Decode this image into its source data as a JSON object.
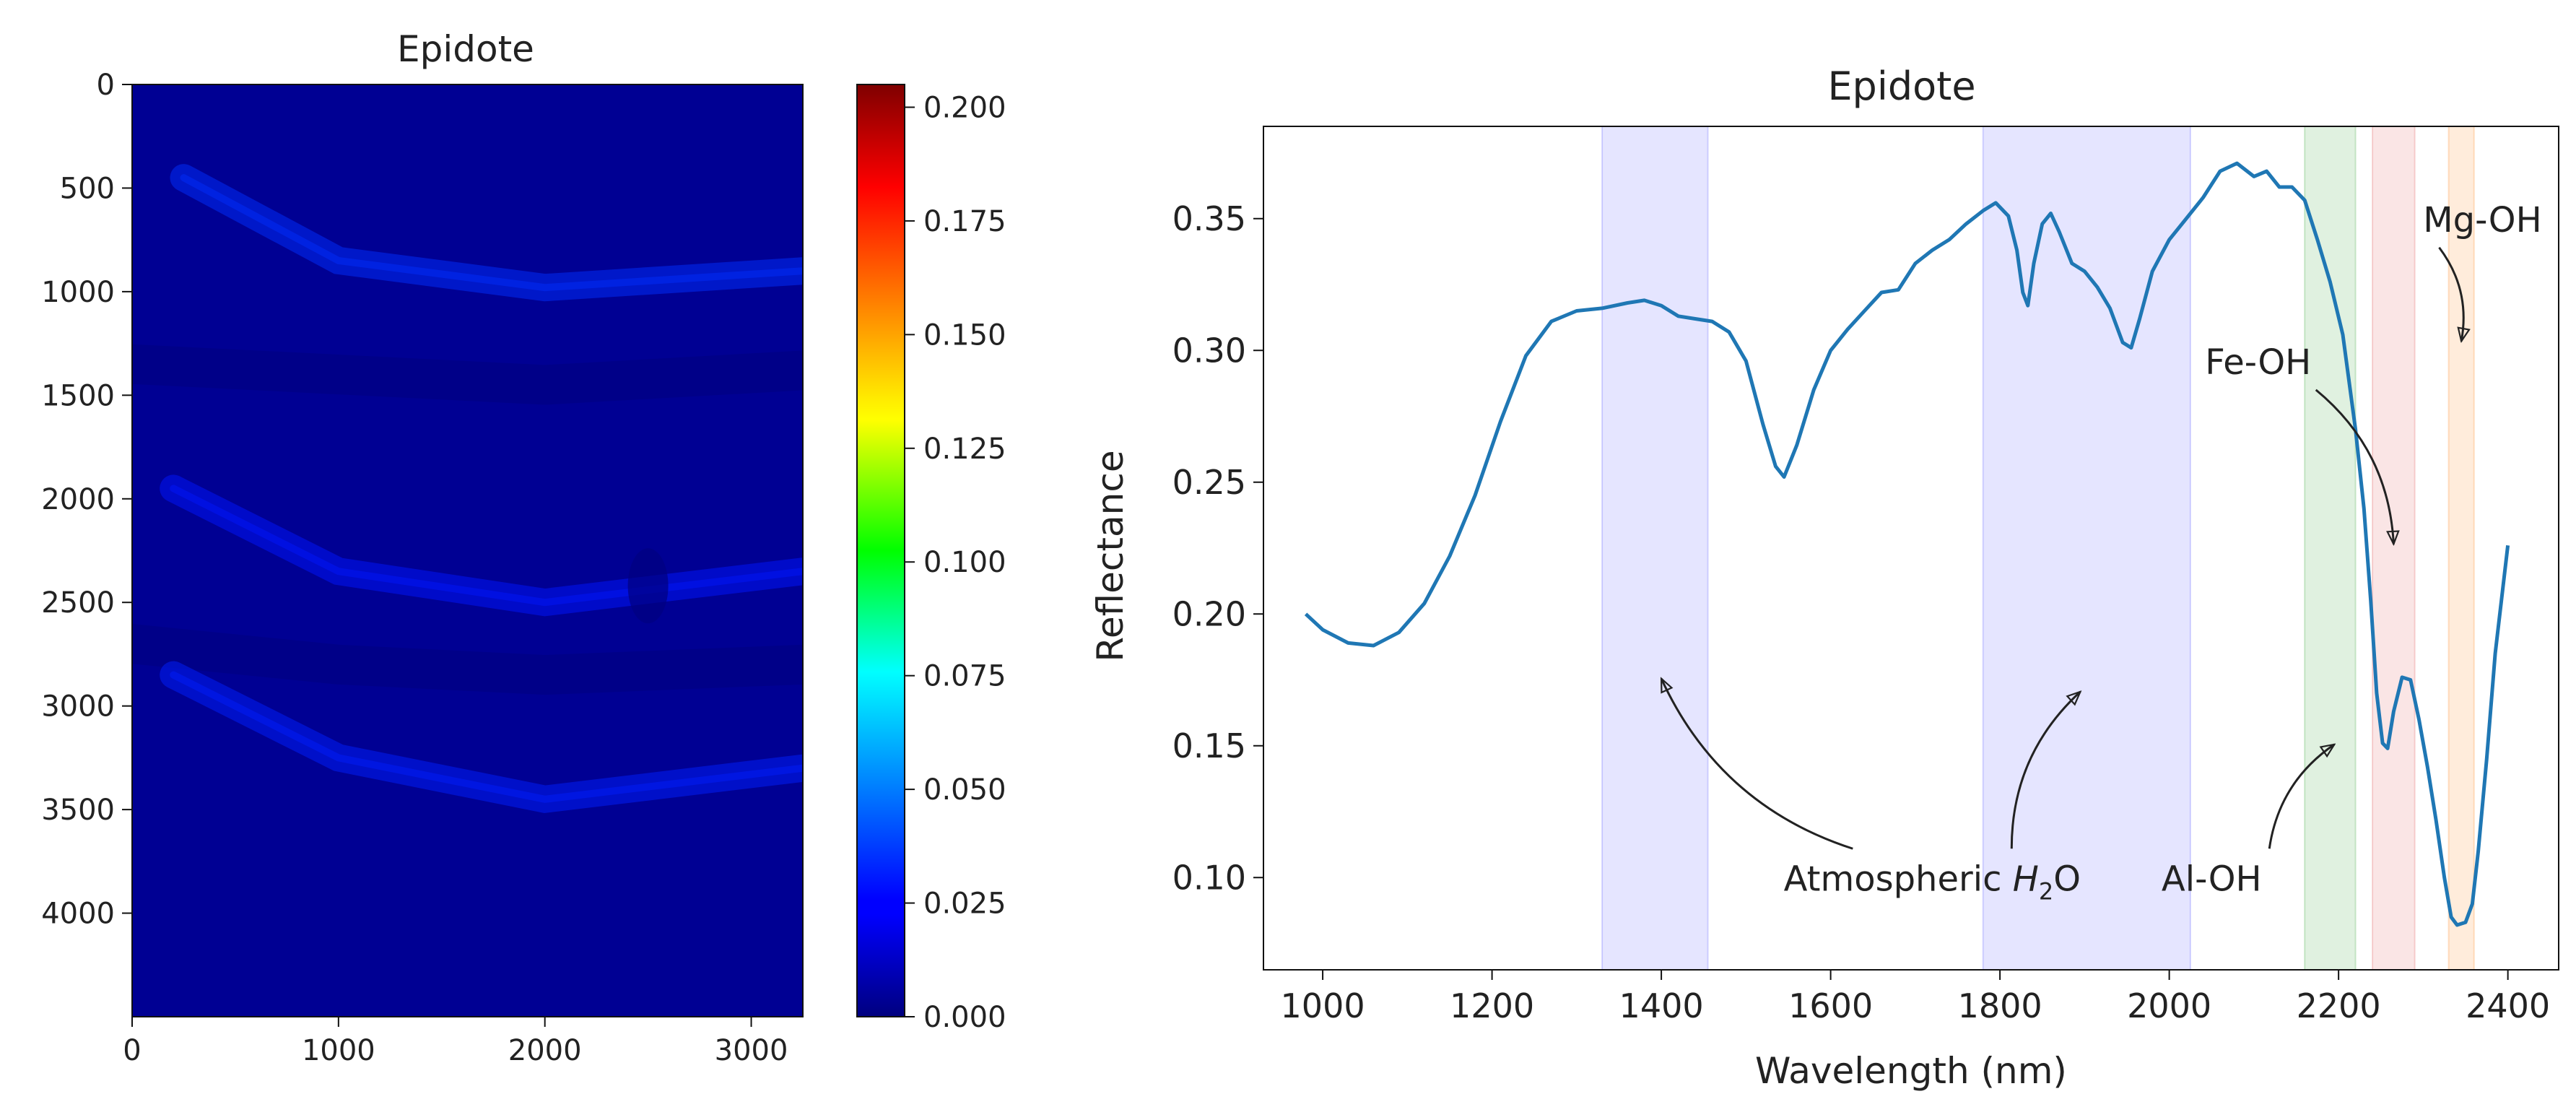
{
  "chart_data": [
    {
      "type": "heatmap",
      "title": "Epidote",
      "colormap": "jet",
      "xlabel": "",
      "ylabel": "",
      "xlim": [
        0,
        3250
      ],
      "ylim": [
        4500,
        0
      ],
      "x_ticks": [
        "0",
        "1000",
        "2000",
        "3000"
      ],
      "y_ticks": [
        "0",
        "500",
        "1000",
        "1500",
        "2000",
        "2500",
        "3000",
        "3500",
        "4000"
      ],
      "colorbar": {
        "range": [
          0,
          0.205
        ],
        "ticks": [
          "0.000",
          "0.025",
          "0.050",
          "0.075",
          "0.100",
          "0.125",
          "0.150",
          "0.175",
          "0.200"
        ]
      },
      "background_value": 0.004,
      "bright_bands": [
        {
          "path": [
            [
              250,
              450
            ],
            [
              1000,
              850
            ],
            [
              2000,
              980
            ],
            [
              3250,
              900
            ]
          ],
          "value": 0.035
        },
        {
          "path": [
            [
              200,
              1950
            ],
            [
              1000,
              2350
            ],
            [
              2000,
              2500
            ],
            [
              3250,
              2350
            ]
          ],
          "value": 0.03
        },
        {
          "path": [
            [
              200,
              2850
            ],
            [
              1000,
              3250
            ],
            [
              2000,
              3450
            ],
            [
              3250,
              3300
            ]
          ],
          "value": 0.032
        }
      ],
      "dark_bands": [
        {
          "path": [
            [
              0,
              1350
            ],
            [
              1000,
              1400
            ],
            [
              2000,
              1450
            ],
            [
              3250,
              1380
            ]
          ],
          "value": 0.0
        },
        {
          "path": [
            [
              0,
              2700
            ],
            [
              1000,
              2800
            ],
            [
              2000,
              2850
            ],
            [
              3250,
              2800
            ]
          ],
          "value": 0.0
        }
      ],
      "dark_spot": {
        "x": 2500,
        "y": 2420,
        "value": 0.0
      }
    },
    {
      "type": "line",
      "title": "Epidote",
      "xlabel": "Wavelength (nm)",
      "ylabel": "Reflectance",
      "xlim": [
        930,
        2460
      ],
      "ylim": [
        0.065,
        0.385
      ],
      "x_ticks": [
        "1000",
        "1200",
        "1400",
        "1600",
        "1800",
        "2000",
        "2200",
        "2400"
      ],
      "y_ticks": [
        "0.10",
        "0.15",
        "0.20",
        "0.25",
        "0.30",
        "0.35"
      ],
      "grid": false,
      "series": [
        {
          "name": "Epidote",
          "color": "#1f77b4",
          "points": [
            [
              980,
              0.2
            ],
            [
              1000,
              0.194
            ],
            [
              1030,
              0.189
            ],
            [
              1060,
              0.188
            ],
            [
              1090,
              0.193
            ],
            [
              1120,
              0.204
            ],
            [
              1150,
              0.222
            ],
            [
              1180,
              0.245
            ],
            [
              1210,
              0.273
            ],
            [
              1240,
              0.298
            ],
            [
              1270,
              0.311
            ],
            [
              1300,
              0.315
            ],
            [
              1330,
              0.316
            ],
            [
              1360,
              0.318
            ],
            [
              1380,
              0.319
            ],
            [
              1400,
              0.317
            ],
            [
              1420,
              0.313
            ],
            [
              1440,
              0.312
            ],
            [
              1460,
              0.311
            ],
            [
              1480,
              0.307
            ],
            [
              1500,
              0.296
            ],
            [
              1520,
              0.272
            ],
            [
              1535,
              0.256
            ],
            [
              1545,
              0.252
            ],
            [
              1560,
              0.264
            ],
            [
              1580,
              0.285
            ],
            [
              1600,
              0.3
            ],
            [
              1620,
              0.308
            ],
            [
              1640,
              0.315
            ],
            [
              1660,
              0.322
            ],
            [
              1680,
              0.323
            ],
            [
              1700,
              0.333
            ],
            [
              1720,
              0.338
            ],
            [
              1740,
              0.342
            ],
            [
              1760,
              0.348
            ],
            [
              1780,
              0.353
            ],
            [
              1795,
              0.356
            ],
            [
              1810,
              0.351
            ],
            [
              1820,
              0.338
            ],
            [
              1827,
              0.322
            ],
            [
              1833,
              0.317
            ],
            [
              1840,
              0.333
            ],
            [
              1850,
              0.348
            ],
            [
              1860,
              0.352
            ],
            [
              1870,
              0.345
            ],
            [
              1885,
              0.333
            ],
            [
              1900,
              0.33
            ],
            [
              1915,
              0.324
            ],
            [
              1930,
              0.316
            ],
            [
              1945,
              0.303
            ],
            [
              1955,
              0.301
            ],
            [
              1965,
              0.312
            ],
            [
              1980,
              0.33
            ],
            [
              2000,
              0.342
            ],
            [
              2020,
              0.35
            ],
            [
              2040,
              0.358
            ],
            [
              2060,
              0.368
            ],
            [
              2080,
              0.371
            ],
            [
              2100,
              0.366
            ],
            [
              2115,
              0.368
            ],
            [
              2130,
              0.362
            ],
            [
              2145,
              0.362
            ],
            [
              2160,
              0.357
            ],
            [
              2175,
              0.342
            ],
            [
              2190,
              0.326
            ],
            [
              2205,
              0.306
            ],
            [
              2220,
              0.27
            ],
            [
              2230,
              0.24
            ],
            [
              2238,
              0.205
            ],
            [
              2245,
              0.17
            ],
            [
              2252,
              0.151
            ],
            [
              2258,
              0.149
            ],
            [
              2265,
              0.163
            ],
            [
              2275,
              0.176
            ],
            [
              2285,
              0.175
            ],
            [
              2295,
              0.16
            ],
            [
              2305,
              0.142
            ],
            [
              2315,
              0.122
            ],
            [
              2325,
              0.1
            ],
            [
              2333,
              0.085
            ],
            [
              2340,
              0.082
            ],
            [
              2350,
              0.083
            ],
            [
              2358,
              0.09
            ],
            [
              2365,
              0.11
            ],
            [
              2375,
              0.145
            ],
            [
              2385,
              0.185
            ],
            [
              2400,
              0.226
            ]
          ]
        }
      ],
      "shaded_regions": [
        {
          "x0": 1330,
          "x1": 1455,
          "color": "#0000ff",
          "alpha": 0.1
        },
        {
          "x0": 1780,
          "x1": 2025,
          "color": "#0000ff",
          "alpha": 0.1
        },
        {
          "x0": 2160,
          "x1": 2220,
          "color": "#2ca02c",
          "alpha": 0.15
        },
        {
          "x0": 2240,
          "x1": 2290,
          "color": "#d62728",
          "alpha": 0.12
        },
        {
          "x0": 2330,
          "x1": 2360,
          "color": "#ff7f0e",
          "alpha": 0.15
        }
      ],
      "annotations": [
        {
          "text": "Atmospheric H2O",
          "text_x": 1720,
          "text_y": 0.1,
          "targets": [
            [
              1400,
              0.1755
            ],
            [
              1895,
              0.1705
            ]
          ]
        },
        {
          "text": "Al-OH",
          "text_x": 2050,
          "text_y": 0.1,
          "targets": [
            [
              2195,
              0.1505
            ]
          ]
        },
        {
          "text": "Fe-OH",
          "text_x": 2105,
          "text_y": 0.296,
          "targets": [
            [
              2265,
              0.2265
            ]
          ]
        },
        {
          "text": "Mg-OH",
          "text_x": 2370,
          "text_y": 0.35,
          "targets": [
            [
              2345,
              0.3035
            ]
          ]
        }
      ]
    }
  ]
}
